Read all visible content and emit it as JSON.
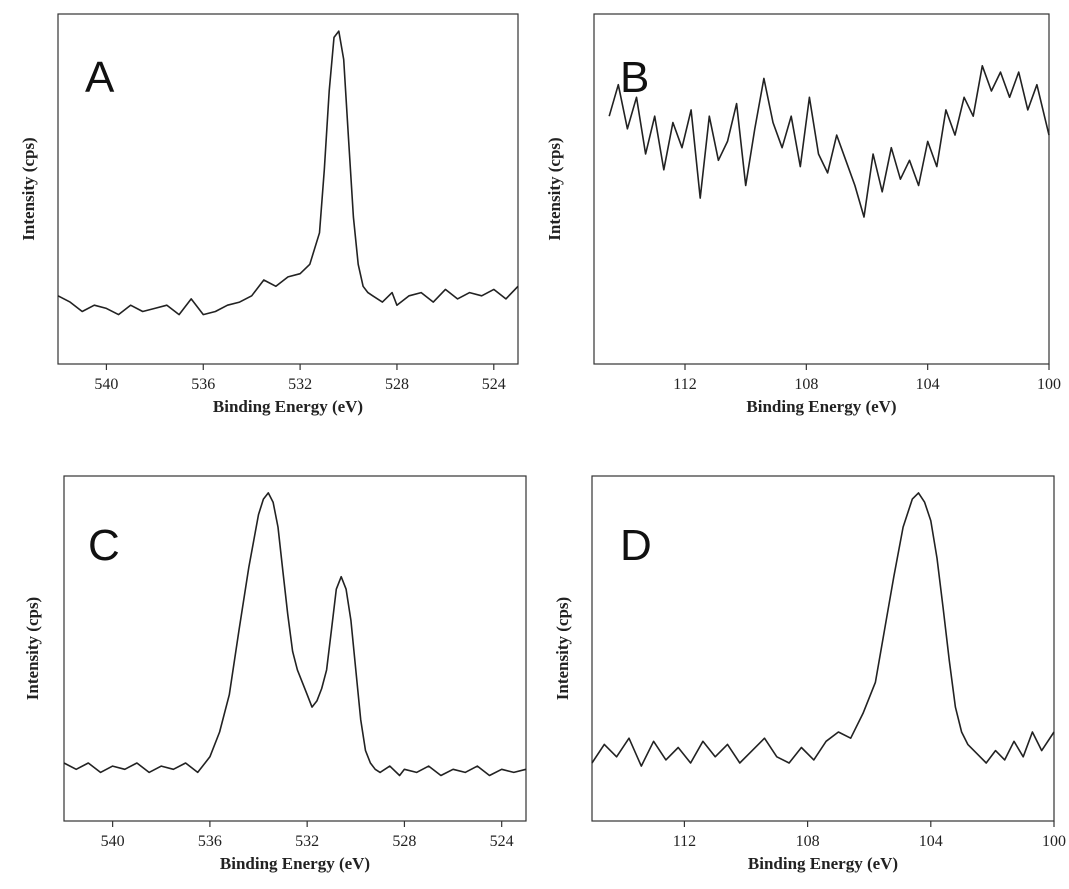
{
  "chart_data": [
    {
      "type": "line",
      "panel": "A",
      "xlabel": "Binding Energy (eV)",
      "ylabel": "Intensity (cps)",
      "xlim": [
        542,
        523
      ],
      "ylim": [
        0,
        1
      ],
      "xticks": [
        540,
        536,
        532,
        528,
        524
      ],
      "series": [
        {
          "x": [
            542,
            541.5,
            541,
            540.5,
            540,
            539.5,
            539,
            538.5,
            538,
            537.5,
            537,
            536.5,
            536,
            535.5,
            535,
            534.5,
            534,
            533.5,
            533,
            532.5,
            532,
            531.6,
            531.2,
            531,
            530.8,
            530.6,
            530.4,
            530.2,
            530,
            529.8,
            529.6,
            529.4,
            529.2,
            529,
            528.6,
            528.2,
            528,
            527.5,
            527,
            526.5,
            526,
            525.5,
            525,
            524.5,
            524,
            523.5,
            523
          ],
          "y": [
            0.15,
            0.13,
            0.1,
            0.12,
            0.11,
            0.09,
            0.12,
            0.1,
            0.11,
            0.12,
            0.09,
            0.14,
            0.09,
            0.1,
            0.12,
            0.13,
            0.15,
            0.2,
            0.18,
            0.21,
            0.22,
            0.25,
            0.35,
            0.55,
            0.8,
            0.97,
            0.99,
            0.9,
            0.65,
            0.4,
            0.25,
            0.18,
            0.16,
            0.15,
            0.13,
            0.16,
            0.12,
            0.15,
            0.16,
            0.13,
            0.17,
            0.14,
            0.16,
            0.15,
            0.17,
            0.14,
            0.18
          ]
        }
      ]
    },
    {
      "type": "line",
      "panel": "B",
      "xlabel": "Binding Energy (eV)",
      "ylabel": "Intensity (cps)",
      "xlim": [
        115,
        100
      ],
      "ylim": [
        0,
        1
      ],
      "xticks": [
        112,
        108,
        104,
        100
      ],
      "series": [
        {
          "x": [
            114.5,
            114.2,
            113.9,
            113.6,
            113.3,
            113,
            112.7,
            112.4,
            112.1,
            111.8,
            111.5,
            111.2,
            110.9,
            110.6,
            110.3,
            110,
            109.7,
            109.4,
            109.1,
            108.8,
            108.5,
            108.2,
            107.9,
            107.6,
            107.3,
            107,
            106.7,
            106.4,
            106.1,
            105.8,
            105.5,
            105.2,
            104.9,
            104.6,
            104.3,
            104,
            103.7,
            103.4,
            103.1,
            102.8,
            102.5,
            102.2,
            101.9,
            101.6,
            101.3,
            101,
            100.7,
            100.4,
            100
          ],
          "y": [
            0.72,
            0.82,
            0.68,
            0.78,
            0.6,
            0.72,
            0.55,
            0.7,
            0.62,
            0.74,
            0.46,
            0.72,
            0.58,
            0.64,
            0.76,
            0.5,
            0.68,
            0.84,
            0.7,
            0.62,
            0.72,
            0.56,
            0.78,
            0.6,
            0.54,
            0.66,
            0.58,
            0.5,
            0.4,
            0.6,
            0.48,
            0.62,
            0.52,
            0.58,
            0.5,
            0.64,
            0.56,
            0.74,
            0.66,
            0.78,
            0.72,
            0.88,
            0.8,
            0.86,
            0.78,
            0.86,
            0.74,
            0.82,
            0.66
          ]
        }
      ]
    },
    {
      "type": "line",
      "panel": "C",
      "xlabel": "Binding Energy (eV)",
      "ylabel": "Intensity (cps)",
      "xlim": [
        542,
        523
      ],
      "ylim": [
        0,
        1
      ],
      "xticks": [
        540,
        536,
        532,
        528,
        524
      ],
      "series": [
        {
          "x": [
            542,
            541.5,
            541,
            540.5,
            540,
            539.5,
            539,
            538.5,
            538,
            537.5,
            537,
            536.5,
            536,
            535.6,
            535.2,
            534.8,
            534.4,
            534,
            533.8,
            533.6,
            533.4,
            533.2,
            533,
            532.8,
            532.6,
            532.4,
            532.2,
            532,
            531.8,
            531.6,
            531.4,
            531.2,
            531,
            530.8,
            530.6,
            530.4,
            530.2,
            530,
            529.8,
            529.6,
            529.4,
            529.2,
            529,
            528.6,
            528.2,
            528,
            527.5,
            527,
            526.5,
            526,
            525.5,
            525,
            524.5,
            524,
            523.5,
            523
          ],
          "y": [
            0.12,
            0.1,
            0.12,
            0.09,
            0.11,
            0.1,
            0.12,
            0.09,
            0.11,
            0.1,
            0.12,
            0.09,
            0.14,
            0.22,
            0.34,
            0.55,
            0.75,
            0.92,
            0.97,
            0.99,
            0.96,
            0.88,
            0.74,
            0.6,
            0.48,
            0.42,
            0.38,
            0.34,
            0.3,
            0.32,
            0.36,
            0.42,
            0.55,
            0.68,
            0.72,
            0.68,
            0.58,
            0.42,
            0.26,
            0.16,
            0.12,
            0.1,
            0.09,
            0.11,
            0.08,
            0.1,
            0.09,
            0.11,
            0.08,
            0.1,
            0.09,
            0.11,
            0.08,
            0.1,
            0.09,
            0.1
          ]
        }
      ]
    },
    {
      "type": "line",
      "panel": "D",
      "xlabel": "Binding Energy (eV)",
      "ylabel": "Intensity (cps)",
      "xlim": [
        115,
        100
      ],
      "ylim": [
        0,
        1
      ],
      "xticks": [
        112,
        108,
        104,
        100
      ],
      "series": [
        {
          "x": [
            115,
            114.6,
            114.2,
            113.8,
            113.4,
            113,
            112.6,
            112.2,
            111.8,
            111.4,
            111,
            110.6,
            110.2,
            109.8,
            109.4,
            109,
            108.6,
            108.2,
            107.8,
            107.4,
            107,
            106.6,
            106.2,
            105.8,
            105.5,
            105.2,
            104.9,
            104.6,
            104.4,
            104.2,
            104,
            103.8,
            103.6,
            103.4,
            103.2,
            103,
            102.8,
            102.5,
            102.2,
            101.9,
            101.6,
            101.3,
            101,
            100.7,
            100.4,
            100
          ],
          "y": [
            0.12,
            0.18,
            0.14,
            0.2,
            0.11,
            0.19,
            0.13,
            0.17,
            0.12,
            0.19,
            0.14,
            0.18,
            0.12,
            0.16,
            0.2,
            0.14,
            0.12,
            0.17,
            0.13,
            0.19,
            0.22,
            0.2,
            0.28,
            0.38,
            0.55,
            0.72,
            0.88,
            0.97,
            0.99,
            0.96,
            0.9,
            0.78,
            0.62,
            0.45,
            0.3,
            0.22,
            0.18,
            0.15,
            0.12,
            0.16,
            0.13,
            0.19,
            0.14,
            0.22,
            0.16,
            0.22
          ]
        }
      ]
    }
  ]
}
